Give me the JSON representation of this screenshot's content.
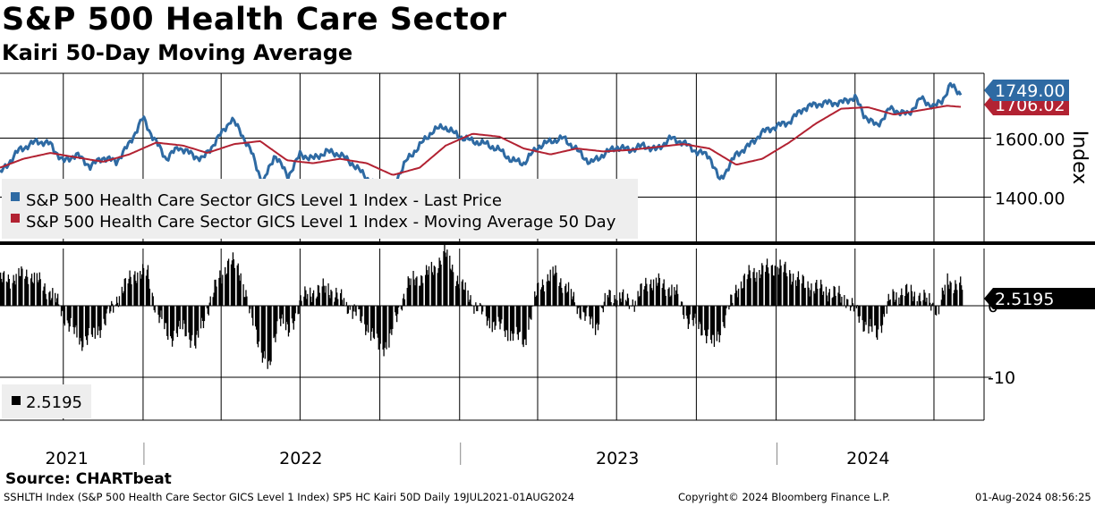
{
  "header": {
    "title": "S&P 500 Health Care Sector",
    "subtitle": "Kairi 50-Day Moving Average"
  },
  "chart_data": [
    {
      "type": "line",
      "y_axis_title": "Index",
      "ylim": [
        1250,
        1820
      ],
      "yticks": [
        {
          "value": 1600,
          "label": "1600.00"
        },
        {
          "value": 1400,
          "label": "1400.00"
        }
      ],
      "grid": true,
      "legend": {
        "placement": "bottom-left",
        "entries": [
          "S&P 500 Health Care Sector GICS Level 1 Index - Last Price",
          "S&P 500 Health Care Sector GICS Level 1 Index - Moving Average 50 Day"
        ]
      },
      "series": [
        {
          "name": "S&P 500 Health Care Sector GICS Level 1 Index - Last Price",
          "color": "#2e6aa3",
          "last_label": "1749.00",
          "points": [
            [
              "2021-07-19",
              1480
            ],
            [
              "2021-08-10",
              1560
            ],
            [
              "2021-08-31",
              1590
            ],
            [
              "2021-09-15",
              1580
            ],
            [
              "2021-09-30",
              1520
            ],
            [
              "2021-10-15",
              1545
            ],
            [
              "2021-10-31",
              1505
            ],
            [
              "2021-11-15",
              1535
            ],
            [
              "2021-11-30",
              1520
            ],
            [
              "2021-12-15",
              1580
            ],
            [
              "2021-12-31",
              1670
            ],
            [
              "2022-01-10",
              1610
            ],
            [
              "2022-01-27",
              1530
            ],
            [
              "2022-02-10",
              1570
            ],
            [
              "2022-02-28",
              1540
            ],
            [
              "2022-03-10",
              1530
            ],
            [
              "2022-03-31",
              1615
            ],
            [
              "2022-04-12",
              1665
            ],
            [
              "2022-04-22",
              1625
            ],
            [
              "2022-05-06",
              1545
            ],
            [
              "2022-05-18",
              1445
            ],
            [
              "2022-06-01",
              1545
            ],
            [
              "2022-06-16",
              1470
            ],
            [
              "2022-06-30",
              1545
            ],
            [
              "2022-07-15",
              1530
            ],
            [
              "2022-07-31",
              1555
            ],
            [
              "2022-08-15",
              1545
            ],
            [
              "2022-08-31",
              1510
            ],
            [
              "2022-09-15",
              1465
            ],
            [
              "2022-09-30",
              1430
            ],
            [
              "2022-10-14",
              1435
            ],
            [
              "2022-10-31",
              1525
            ],
            [
              "2022-11-15",
              1575
            ],
            [
              "2022-11-30",
              1625
            ],
            [
              "2022-12-13",
              1640
            ],
            [
              "2022-12-31",
              1605
            ],
            [
              "2023-01-15",
              1590
            ],
            [
              "2023-01-31",
              1580
            ],
            [
              "2023-02-15",
              1560
            ],
            [
              "2023-03-01",
              1525
            ],
            [
              "2023-03-15",
              1515
            ],
            [
              "2023-03-31",
              1570
            ],
            [
              "2023-04-15",
              1590
            ],
            [
              "2023-04-30",
              1600
            ],
            [
              "2023-05-15",
              1560
            ],
            [
              "2023-05-31",
              1515
            ],
            [
              "2023-06-15",
              1545
            ],
            [
              "2023-06-30",
              1570
            ],
            [
              "2023-07-15",
              1560
            ],
            [
              "2023-07-31",
              1575
            ],
            [
              "2023-08-15",
              1560
            ],
            [
              "2023-08-31",
              1600
            ],
            [
              "2023-09-15",
              1585
            ],
            [
              "2023-09-30",
              1555
            ],
            [
              "2023-10-15",
              1540
            ],
            [
              "2023-10-27",
              1455
            ],
            [
              "2023-11-15",
              1545
            ],
            [
              "2023-11-30",
              1575
            ],
            [
              "2023-12-15",
              1620
            ],
            [
              "2023-12-31",
              1640
            ],
            [
              "2024-01-15",
              1655
            ],
            [
              "2024-01-31",
              1700
            ],
            [
              "2024-02-15",
              1715
            ],
            [
              "2024-02-29",
              1720
            ],
            [
              "2024-03-15",
              1720
            ],
            [
              "2024-03-31",
              1740
            ],
            [
              "2024-04-10",
              1680
            ],
            [
              "2024-04-25",
              1640
            ],
            [
              "2024-05-10",
              1700
            ],
            [
              "2024-05-31",
              1680
            ],
            [
              "2024-06-15",
              1735
            ],
            [
              "2024-06-30",
              1705
            ],
            [
              "2024-07-10",
              1730
            ],
            [
              "2024-07-19",
              1780
            ],
            [
              "2024-08-01",
              1749
            ]
          ]
        },
        {
          "name": "S&P 500 Health Care Sector GICS Level 1 Index - Moving Average 50 Day",
          "color": "#b22232",
          "last_label": "1706.02",
          "points": [
            [
              "2021-07-19",
              1500
            ],
            [
              "2021-08-15",
              1530
            ],
            [
              "2021-09-15",
              1550
            ],
            [
              "2021-10-15",
              1535
            ],
            [
              "2021-11-15",
              1520
            ],
            [
              "2021-12-15",
              1545
            ],
            [
              "2022-01-15",
              1585
            ],
            [
              "2022-02-15",
              1575
            ],
            [
              "2022-03-15",
              1550
            ],
            [
              "2022-04-15",
              1580
            ],
            [
              "2022-05-15",
              1590
            ],
            [
              "2022-06-15",
              1525
            ],
            [
              "2022-07-15",
              1515
            ],
            [
              "2022-08-15",
              1530
            ],
            [
              "2022-09-15",
              1515
            ],
            [
              "2022-10-15",
              1475
            ],
            [
              "2022-11-15",
              1500
            ],
            [
              "2022-12-15",
              1575
            ],
            [
              "2023-01-15",
              1615
            ],
            [
              "2023-02-15",
              1605
            ],
            [
              "2023-03-15",
              1565
            ],
            [
              "2023-04-15",
              1545
            ],
            [
              "2023-05-15",
              1565
            ],
            [
              "2023-06-15",
              1555
            ],
            [
              "2023-07-15",
              1560
            ],
            [
              "2023-08-15",
              1570
            ],
            [
              "2023-09-15",
              1580
            ],
            [
              "2023-10-15",
              1565
            ],
            [
              "2023-11-15",
              1510
            ],
            [
              "2023-12-15",
              1530
            ],
            [
              "2024-01-15",
              1585
            ],
            [
              "2024-02-15",
              1650
            ],
            [
              "2024-03-15",
              1700
            ],
            [
              "2024-04-15",
              1705
            ],
            [
              "2024-05-15",
              1680
            ],
            [
              "2024-06-15",
              1695
            ],
            [
              "2024-07-15",
              1710
            ],
            [
              "2024-08-01",
              1706.02
            ]
          ]
        }
      ]
    },
    {
      "type": "bar",
      "ylim": [
        -16,
        8
      ],
      "yticks": [
        {
          "value": 0,
          "label": "0"
        },
        {
          "value": -10,
          "label": "-10"
        }
      ],
      "grid": true,
      "legend": {
        "placement": "bottom-left",
        "entries": [
          "2.5195"
        ]
      },
      "series": [
        {
          "color": "#000000",
          "last_label": "2.5195",
          "points": [
            [
              "2021-07-19",
              3.5
            ],
            [
              "2021-08-05",
              4
            ],
            [
              "2021-08-20",
              4.5
            ],
            [
              "2021-09-05",
              3
            ],
            [
              "2021-09-20",
              1
            ],
            [
              "2021-10-05",
              -2.5
            ],
            [
              "2021-10-20",
              -5
            ],
            [
              "2021-11-05",
              -4
            ],
            [
              "2021-11-20",
              -1.5
            ],
            [
              "2021-12-05",
              2
            ],
            [
              "2021-12-20",
              4.5
            ],
            [
              "2022-01-05",
              4.5
            ],
            [
              "2022-01-15",
              -1
            ],
            [
              "2022-01-31",
              -4.5
            ],
            [
              "2022-02-15",
              -3
            ],
            [
              "2022-03-01",
              -5.5
            ],
            [
              "2022-03-10",
              -2
            ],
            [
              "2022-03-25",
              3
            ],
            [
              "2022-04-10",
              6.5
            ],
            [
              "2022-04-22",
              4.5
            ],
            [
              "2022-05-05",
              -2
            ],
            [
              "2022-05-15",
              -6
            ],
            [
              "2022-05-25",
              -9
            ],
            [
              "2022-06-05",
              -1
            ],
            [
              "2022-06-16",
              -4
            ],
            [
              "2022-07-01",
              1
            ],
            [
              "2022-07-15",
              2
            ],
            [
              "2022-08-01",
              2.5
            ],
            [
              "2022-08-15",
              1
            ],
            [
              "2022-09-01",
              -1
            ],
            [
              "2022-09-15",
              -3
            ],
            [
              "2022-09-30",
              -6
            ],
            [
              "2022-10-10",
              -5
            ],
            [
              "2022-10-31",
              3
            ],
            [
              "2022-11-15",
              4
            ],
            [
              "2022-11-30",
              5
            ],
            [
              "2022-12-13",
              7.5
            ],
            [
              "2022-12-31",
              3
            ],
            [
              "2023-01-15",
              0.5
            ],
            [
              "2023-02-01",
              -2
            ],
            [
              "2023-02-15",
              -3
            ],
            [
              "2023-03-01",
              -4
            ],
            [
              "2023-03-15",
              -5
            ],
            [
              "2023-04-01",
              3
            ],
            [
              "2023-04-20",
              4.5
            ],
            [
              "2023-05-05",
              2
            ],
            [
              "2023-05-20",
              -1
            ],
            [
              "2023-06-05",
              -3
            ],
            [
              "2023-06-20",
              1.5
            ],
            [
              "2023-07-05",
              1
            ],
            [
              "2023-07-20",
              0.5
            ],
            [
              "2023-08-05",
              3.5
            ],
            [
              "2023-08-20",
              3
            ],
            [
              "2023-09-05",
              2
            ],
            [
              "2023-09-20",
              -2
            ],
            [
              "2023-10-05",
              -3
            ],
            [
              "2023-10-20",
              -5.5
            ],
            [
              "2023-11-01",
              -2
            ],
            [
              "2023-11-15",
              2.5
            ],
            [
              "2023-12-01",
              4.5
            ],
            [
              "2023-12-15",
              5
            ],
            [
              "2024-01-01",
              5.5
            ],
            [
              "2024-01-15",
              4.5
            ],
            [
              "2024-02-01",
              3
            ],
            [
              "2024-02-15",
              2.5
            ],
            [
              "2024-03-01",
              2
            ],
            [
              "2024-03-20",
              1
            ],
            [
              "2024-04-10",
              -2.5
            ],
            [
              "2024-04-25",
              -4
            ],
            [
              "2024-05-10",
              1
            ],
            [
              "2024-05-25",
              2
            ],
            [
              "2024-06-10",
              1.5
            ],
            [
              "2024-06-25",
              0.5
            ],
            [
              "2024-07-05",
              -0.5
            ],
            [
              "2024-07-15",
              3.5
            ],
            [
              "2024-08-01",
              2.52
            ]
          ]
        }
      ]
    }
  ],
  "x_axis": {
    "year_labels": [
      {
        "label": "2021",
        "date": "2021-10-04"
      },
      {
        "label": "2022",
        "date": "2022-07-01"
      },
      {
        "label": "2023",
        "date": "2023-07-01"
      },
      {
        "label": "2024",
        "date": "2024-04-15"
      }
    ],
    "year_boundaries": [
      "2022-01-01",
      "2023-01-01",
      "2024-01-01"
    ]
  },
  "source": "Source: CHARTbeat",
  "footer": {
    "left": "SSHLTH Index (S&P 500 Health Care Sector GICS Level 1 Index) SP5 HC Kairi 50D  Daily 19JUL2021-01AUG2024",
    "middle": "Copyright© 2024 Bloomberg Finance L.P.",
    "right": "01-Aug-2024 08:56:25"
  },
  "colors": {
    "price": "#2e6aa3",
    "moving_average": "#b22232",
    "oscillator": "#000000",
    "grid": "#000000",
    "legend_box": "#eeeeee"
  }
}
